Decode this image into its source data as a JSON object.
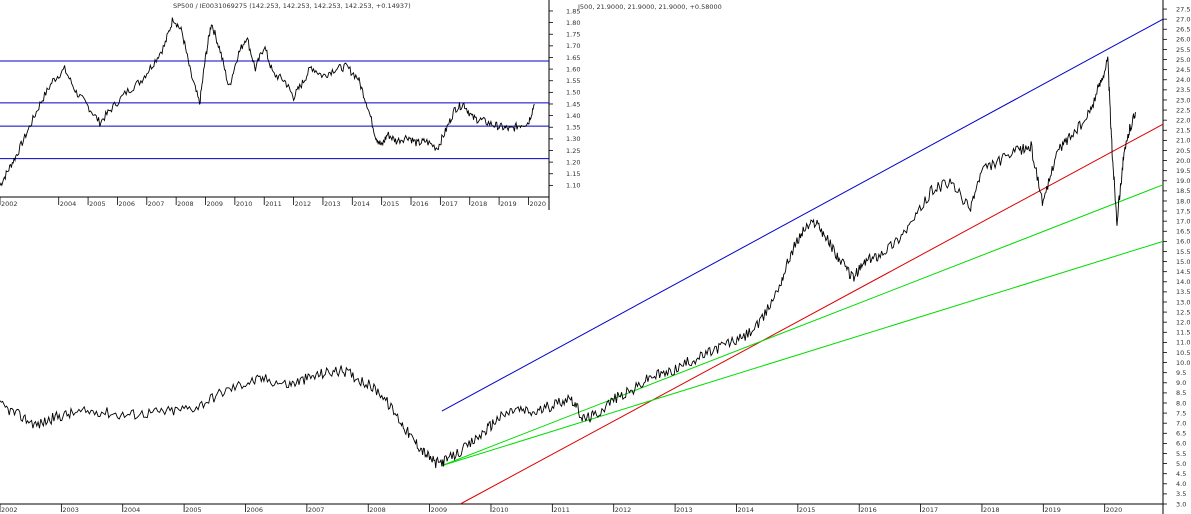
{
  "chart_data": [
    {
      "type": "line",
      "title": "SP500 / IE0031069275 (142.253, 142.253, 142.253, 142.253, +0.14937)",
      "x_axis_years": [
        "2002",
        "2004",
        "2005",
        "2006",
        "2007",
        "2008",
        "2009",
        "2010",
        "2011",
        "2012",
        "2013",
        "2014",
        "2015",
        "2016",
        "2017",
        "2018",
        "2019",
        "2020"
      ],
      "ylim": [
        1.05,
        1.88
      ],
      "y_ticks": [
        "1.85",
        "1.80",
        "1.75",
        "1.70",
        "1.65",
        "1.60",
        "1.55",
        "1.50",
        "1.45",
        "1.40",
        "1.35",
        "1.30",
        "1.25",
        "1.20",
        "1.15",
        "1.10"
      ],
      "horizontal_levels": [
        1.635,
        1.455,
        1.355,
        1.215
      ],
      "level_color": "#0000cc",
      "series": [
        {
          "x": [
            2002.0,
            2002.3,
            2002.6,
            2003.0,
            2003.4,
            2003.8,
            2004.2,
            2004.6,
            2005.0,
            2005.4,
            2005.8,
            2006.3,
            2006.8,
            2007.2,
            2007.6,
            2007.9,
            2008.2,
            2008.5,
            2008.8,
            2009.0,
            2009.2,
            2009.5,
            2009.8,
            2010.1,
            2010.4,
            2010.7,
            2011.0,
            2011.3,
            2011.7,
            2012.0,
            2012.3,
            2012.6,
            2013.0,
            2013.4,
            2013.8,
            2014.2,
            2014.5,
            2014.8,
            2015.0,
            2015.2,
            2015.5,
            2015.9,
            2016.2,
            2016.5,
            2016.9,
            2017.2,
            2017.5,
            2017.8,
            2018.1,
            2018.4,
            2018.8,
            2019.1,
            2019.4,
            2019.7,
            2020.0,
            2020.2
          ],
          "y": [
            1.1,
            1.17,
            1.24,
            1.35,
            1.46,
            1.55,
            1.6,
            1.5,
            1.44,
            1.37,
            1.43,
            1.5,
            1.55,
            1.62,
            1.7,
            1.82,
            1.76,
            1.58,
            1.45,
            1.65,
            1.8,
            1.68,
            1.52,
            1.66,
            1.74,
            1.6,
            1.7,
            1.58,
            1.55,
            1.48,
            1.54,
            1.61,
            1.57,
            1.6,
            1.61,
            1.56,
            1.45,
            1.31,
            1.27,
            1.32,
            1.29,
            1.31,
            1.28,
            1.29,
            1.26,
            1.34,
            1.43,
            1.45,
            1.39,
            1.38,
            1.36,
            1.35,
            1.34,
            1.36,
            1.37,
            1.45
          ]
        }
      ]
    },
    {
      "type": "line",
      "title": "I500, 21.9000, 21.9000, 21.9000, +0.58000",
      "x_axis_years": [
        "2002",
        "2003",
        "2004",
        "2005",
        "2006",
        "2007",
        "2008",
        "2009",
        "2010",
        "2011",
        "2012",
        "2013",
        "2014",
        "2015",
        "2016",
        "2017",
        "2018",
        "2019",
        "2020"
      ],
      "ylim": [
        3.0,
        27.75
      ],
      "y_ticks": [
        "27.5",
        "27.0",
        "26.5",
        "26.0",
        "25.5",
        "25.0",
        "24.5",
        "24.0",
        "23.5",
        "23.0",
        "22.5",
        "22.0",
        "21.5",
        "21.0",
        "20.5",
        "20.0",
        "19.5",
        "19.0",
        "18.5",
        "18.0",
        "17.5",
        "17.0",
        "16.5",
        "16.0",
        "15.5",
        "15.0",
        "14.5",
        "14.0",
        "13.5",
        "13.0",
        "12.5",
        "12.0",
        "11.5",
        "11.0",
        "10.5",
        "10.0",
        "9.5",
        "9.0",
        "8.5",
        "8.0",
        "7.5",
        "7.0",
        "6.5",
        "6.0",
        "5.5",
        "5.0",
        "4.5",
        "4.0",
        "3.5",
        "3.0"
      ],
      "trendlines": [
        {
          "color": "#0000cc",
          "from": [
            2009.2,
            7.6
          ],
          "to": [
            2020.95,
            27.0
          ]
        },
        {
          "color": "#dd0000",
          "from": [
            2009.5,
            3.0
          ],
          "to": [
            2020.95,
            21.8
          ]
        },
        {
          "color": "#00dd00",
          "from": [
            2009.2,
            4.9
          ],
          "to": [
            2020.95,
            18.8
          ]
        },
        {
          "color": "#00dd00",
          "from": [
            2009.2,
            4.9
          ],
          "to": [
            2020.95,
            16.0
          ]
        }
      ],
      "series": [
        {
          "x": [
            2002.0,
            2002.3,
            2002.6,
            2002.9,
            2003.2,
            2003.6,
            2004.0,
            2004.4,
            2004.8,
            2005.2,
            2005.6,
            2006.0,
            2006.3,
            2006.7,
            2007.0,
            2007.3,
            2007.6,
            2007.9,
            2008.2,
            2008.5,
            2008.7,
            2008.9,
            2009.1,
            2009.3,
            2009.6,
            2009.9,
            2010.1,
            2010.4,
            2010.7,
            2011.0,
            2011.3,
            2011.5,
            2011.7,
            2012.0,
            2012.3,
            2012.6,
            2012.9,
            2013.2,
            2013.5,
            2013.8,
            2014.1,
            2014.4,
            2014.7,
            2014.9,
            2015.1,
            2015.3,
            2015.5,
            2015.7,
            2015.9,
            2016.1,
            2016.3,
            2016.6,
            2016.9,
            2017.2,
            2017.5,
            2017.8,
            2018.0,
            2018.3,
            2018.6,
            2018.8,
            2019.0,
            2019.2,
            2019.4,
            2019.7,
            2019.9,
            2020.05,
            2020.12,
            2020.2,
            2020.3,
            2020.4,
            2020.5
          ],
          "y": [
            7.9,
            7.4,
            6.9,
            7.3,
            7.5,
            7.6,
            7.4,
            7.5,
            7.6,
            7.8,
            8.5,
            9.0,
            9.2,
            8.9,
            9.2,
            9.5,
            9.6,
            9.1,
            8.5,
            7.2,
            6.3,
            5.6,
            5.0,
            5.2,
            5.8,
            6.6,
            7.2,
            7.7,
            7.5,
            7.9,
            8.3,
            7.2,
            7.4,
            8.2,
            8.6,
            9.3,
            9.5,
            10.0,
            10.4,
            10.9,
            11.2,
            12.0,
            13.8,
            15.5,
            16.6,
            17.0,
            16.0,
            15.0,
            14.2,
            15.0,
            15.3,
            16.0,
            17.1,
            18.6,
            18.9,
            17.6,
            19.5,
            20.0,
            20.5,
            20.7,
            17.8,
            20.3,
            21.1,
            22.0,
            23.6,
            25.0,
            20.5,
            17.0,
            20.0,
            21.5,
            22.4
          ]
        }
      ]
    }
  ]
}
